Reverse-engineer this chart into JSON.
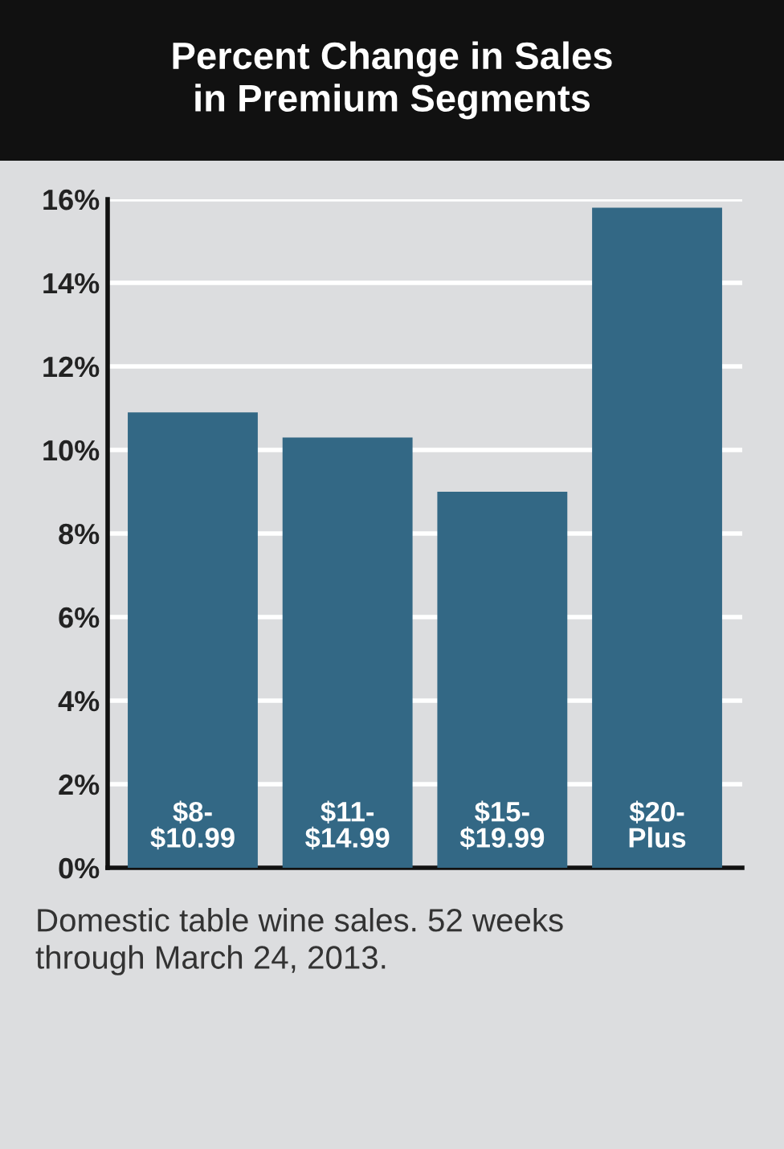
{
  "chart_data": {
    "type": "bar",
    "title": "Percent Change in Sales\nin Premium Segments",
    "categories": [
      "$8-\n$10.99",
      "$11-\n$14.99",
      "$15-\n$19.99",
      "$20-\nPlus"
    ],
    "values": [
      10.9,
      10.3,
      9.0,
      15.8
    ],
    "color": "#336885",
    "ylim": [
      0,
      16
    ],
    "yticks": [
      {
        "value": 0,
        "label": "0%"
      },
      {
        "value": 2,
        "label": "2%"
      },
      {
        "value": 4,
        "label": "4%"
      },
      {
        "value": 6,
        "label": "6%"
      },
      {
        "value": 8,
        "label": "8%"
      },
      {
        "value": 10,
        "label": "10%"
      },
      {
        "value": 12,
        "label": "12%"
      },
      {
        "value": 14,
        "label": "14%"
      },
      {
        "value": 16,
        "label": "16%"
      }
    ],
    "grid": "y",
    "annotations": [
      "Domestic table wine sales. 52 weeks\nthrough March 24, 2013."
    ]
  }
}
